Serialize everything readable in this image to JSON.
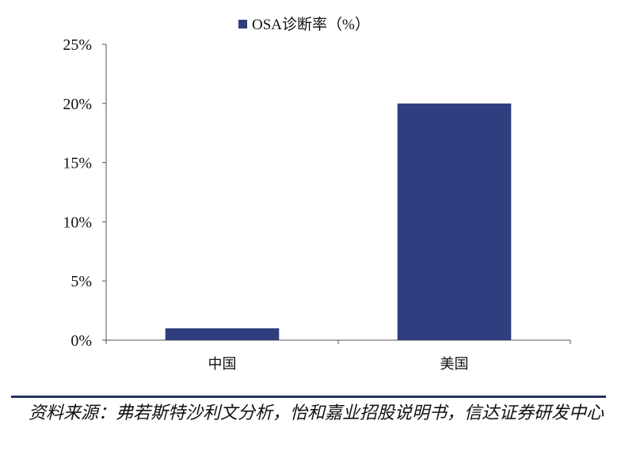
{
  "chart_data": {
    "type": "bar",
    "categories": [
      "中国",
      "美国"
    ],
    "series": [
      {
        "name": "OSA诊断率（%）",
        "values": [
          1,
          20
        ],
        "color": "#2f3e7e"
      }
    ],
    "legend": "top-center",
    "ylim": [
      0,
      25
    ],
    "yticks": [
      0,
      5,
      10,
      15,
      20,
      25
    ],
    "ytick_format": "{v}%",
    "grid": false
  },
  "source": "资料来源：弗若斯特沙利文分析，怡和嘉业招股说明书，信达证券研发中心"
}
